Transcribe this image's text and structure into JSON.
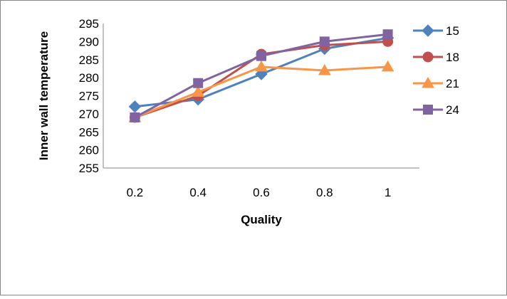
{
  "chart_data": {
    "type": "line",
    "title": "",
    "xlabel": "Quality",
    "ylabel": "Inner  wall temperature",
    "categories": [
      "0.2",
      "0.4",
      "0.6",
      "0.8",
      "1"
    ],
    "ylim": [
      255,
      295
    ],
    "yticks": [
      "255",
      "260",
      "265",
      "270",
      "275",
      "280",
      "285",
      "290",
      "295"
    ],
    "grid": false,
    "legend_position": "right",
    "series": [
      {
        "name": "15",
        "color": "#4F81BD",
        "marker": "diamond",
        "values": [
          272,
          274,
          281,
          288,
          291
        ]
      },
      {
        "name": "18",
        "color": "#C0504D",
        "marker": "circle",
        "values": [
          269,
          275,
          286.5,
          289,
          290
        ]
      },
      {
        "name": "21",
        "color": "#F79646",
        "marker": "triangle",
        "values": [
          269,
          276,
          283,
          282,
          283
        ]
      },
      {
        "name": "24",
        "color": "#8064A2",
        "marker": "square",
        "values": [
          269,
          278.5,
          286,
          290,
          292
        ]
      }
    ]
  }
}
